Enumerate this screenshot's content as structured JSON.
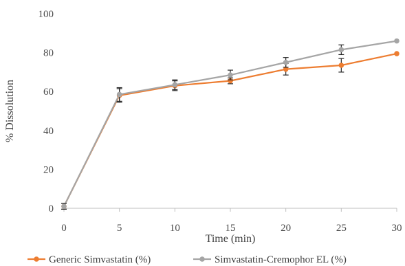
{
  "chart_data": {
    "type": "line",
    "xlabel": "Time (min)",
    "ylabel": "% Dissolution",
    "x": [
      0,
      5,
      10,
      15,
      20,
      25,
      30
    ],
    "xlim": [
      0,
      30
    ],
    "ylim": [
      0,
      100
    ],
    "x_ticks": [
      "0",
      "5",
      "10",
      "15",
      "20",
      "25",
      "30"
    ],
    "y_ticks": [
      "0",
      "20",
      "40",
      "60",
      "80",
      "100"
    ],
    "grid": false,
    "legend_position": "bottom",
    "series": [
      {
        "name": "Generic Simvastatin (%)",
        "color": "#ed7d31",
        "values": [
          1,
          58,
          63,
          65.5,
          71.5,
          73.5,
          79.5
        ],
        "error": [
          1.5,
          3.5,
          2.5,
          1.5,
          3,
          3.5,
          0
        ]
      },
      {
        "name": "Simvastatin-Cremophor EL (%)",
        "color": "#a5a5a5",
        "values": [
          1,
          58.5,
          63.5,
          68.5,
          75,
          81.5,
          86
        ],
        "error": [
          1.5,
          3.5,
          2.5,
          2.5,
          2.5,
          2.5,
          0
        ]
      }
    ]
  }
}
